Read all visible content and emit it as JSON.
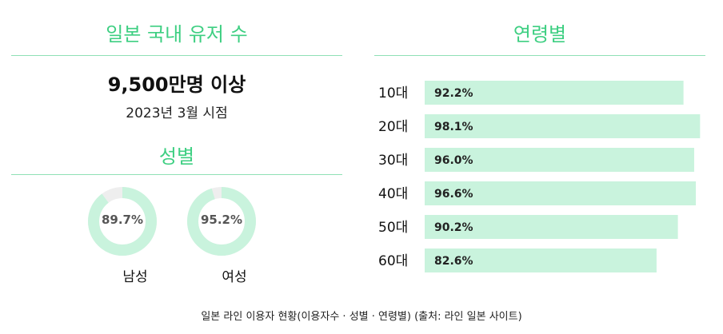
{
  "users": {
    "title": "일본 국내 유저 수",
    "count": "9,500만명 이상",
    "as_of": "2023년 3월 시점"
  },
  "gender": {
    "title": "성별"
  },
  "age": {
    "title": "연령별"
  },
  "footnote": "일본 라인 이용자 현황(이용자수 · 성별 · 연령별) (출처: 라인 일본 사이트)",
  "colors": {
    "accent": "#3ecf82",
    "rule": "#8fe0b5",
    "fill": "#c9f3dd",
    "track": "#eeeeee"
  },
  "chart_data": [
    {
      "type": "pie",
      "categories": [
        "남성",
        "여성"
      ],
      "values": [
        89.7,
        95.2
      ],
      "value_labels": [
        "89.7%",
        "95.2%"
      ],
      "max": 100
    },
    {
      "type": "bar",
      "orientation": "horizontal",
      "categories": [
        "10대",
        "20대",
        "30대",
        "40대",
        "50대",
        "60대"
      ],
      "values": [
        92.2,
        98.1,
        96.0,
        96.6,
        90.2,
        82.6
      ],
      "value_labels": [
        "92.2%",
        "98.1%",
        "96.0%",
        "96.6%",
        "90.2%",
        "82.6%"
      ],
      "xlim": [
        0,
        100
      ]
    }
  ]
}
